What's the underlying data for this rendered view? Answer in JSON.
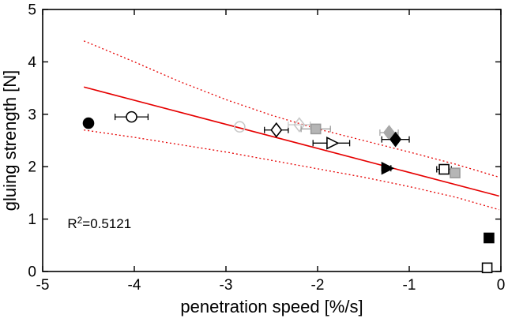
{
  "figure": {
    "annotation": {
      "base": "R",
      "sup": "2",
      "rest": "=0.5121"
    }
  },
  "chart_data": {
    "type": "scatter",
    "title": "",
    "xlabel": "penetration speed [%/s]",
    "ylabel": "gluing strength [N]",
    "xlim": [
      -5,
      0
    ],
    "ylim": [
      0,
      5
    ],
    "xticks": [
      "-5",
      "-4",
      "-3",
      "-2",
      "-1",
      "0"
    ],
    "xtick_values": [
      -5,
      -4,
      -3,
      -2,
      -1,
      0
    ],
    "yticks": [
      "0",
      "1",
      "2",
      "3",
      "4",
      "5"
    ],
    "ytick_values": [
      0,
      1,
      2,
      3,
      4,
      5
    ],
    "grid": false,
    "box": true,
    "r_squared": 0.5121,
    "annotation": "R^2=0.5121",
    "annotation_pos": [
      -4.73,
      0.83
    ],
    "fit_color": "#e60000",
    "fit_line": {
      "x": [
        -4.55,
        -0.02
      ],
      "y": [
        3.52,
        1.44
      ]
    },
    "confidence_upper": {
      "x": [
        -4.55,
        -4.0,
        -3.5,
        -3.0,
        -2.5,
        -2.0,
        -1.5,
        -1.0,
        -0.5,
        -0.02
      ],
      "y": [
        4.4,
        4.0,
        3.62,
        3.28,
        2.98,
        2.72,
        2.5,
        2.28,
        2.05,
        1.8
      ]
    },
    "confidence_lower": {
      "x": [
        -4.55,
        -4.0,
        -3.5,
        -3.0,
        -2.5,
        -2.0,
        -1.5,
        -1.0,
        -0.5,
        -0.02
      ],
      "y": [
        2.7,
        2.56,
        2.42,
        2.28,
        2.12,
        1.96,
        1.8,
        1.62,
        1.42,
        1.18
      ]
    },
    "points": [
      {
        "x": -4.5,
        "y": 2.83,
        "marker": "circle",
        "fill": "#000000",
        "edge": "#000000",
        "xerr": 0
      },
      {
        "x": -4.03,
        "y": 2.95,
        "marker": "circle",
        "fill": "#ffffff",
        "edge": "#000000",
        "xerr": 0.18
      },
      {
        "x": -2.85,
        "y": 2.76,
        "marker": "circle",
        "fill": "none",
        "edge": "#c9c9c9",
        "xerr": 0
      },
      {
        "x": -2.45,
        "y": 2.7,
        "marker": "diamond",
        "fill": "#ffffff",
        "edge": "#000000",
        "xerr": 0.13
      },
      {
        "x": -2.2,
        "y": 2.8,
        "marker": "diamond",
        "fill": "none",
        "edge": "#c9c9c9",
        "xerr": 0.12
      },
      {
        "x": -2.02,
        "y": 2.72,
        "marker": "square",
        "fill": "#b5b5b5",
        "edge": "#9a9a9a",
        "xerr": 0.16
      },
      {
        "x": -1.85,
        "y": 2.45,
        "marker": "triangle-right",
        "fill": "#ffffff",
        "edge": "#000000",
        "xerr": 0.2
      },
      {
        "x": -1.22,
        "y": 2.65,
        "marker": "diamond",
        "fill": "#a8a8a8",
        "edge": "#a8a8a8",
        "xerr": 0.1
      },
      {
        "x": -1.15,
        "y": 2.52,
        "marker": "diamond",
        "fill": "#000000",
        "edge": "#000000",
        "xerr": 0.15
      },
      {
        "x": -1.25,
        "y": 1.97,
        "marker": "triangle-right",
        "fill": "#000000",
        "edge": "#000000",
        "xerr": 0.05
      },
      {
        "x": -0.62,
        "y": 1.95,
        "marker": "square",
        "fill": "#ffffff",
        "edge": "#000000",
        "xerr": 0.08
      },
      {
        "x": -0.5,
        "y": 1.88,
        "marker": "square",
        "fill": "#b5b5b5",
        "edge": "#9a9a9a",
        "xerr": 0.05
      },
      {
        "x": -0.13,
        "y": 0.64,
        "marker": "square",
        "fill": "#000000",
        "edge": "#000000",
        "xerr": 0
      },
      {
        "x": -0.15,
        "y": 0.07,
        "marker": "square",
        "fill": "#ffffff",
        "edge": "#000000",
        "xerr": 0
      }
    ]
  }
}
